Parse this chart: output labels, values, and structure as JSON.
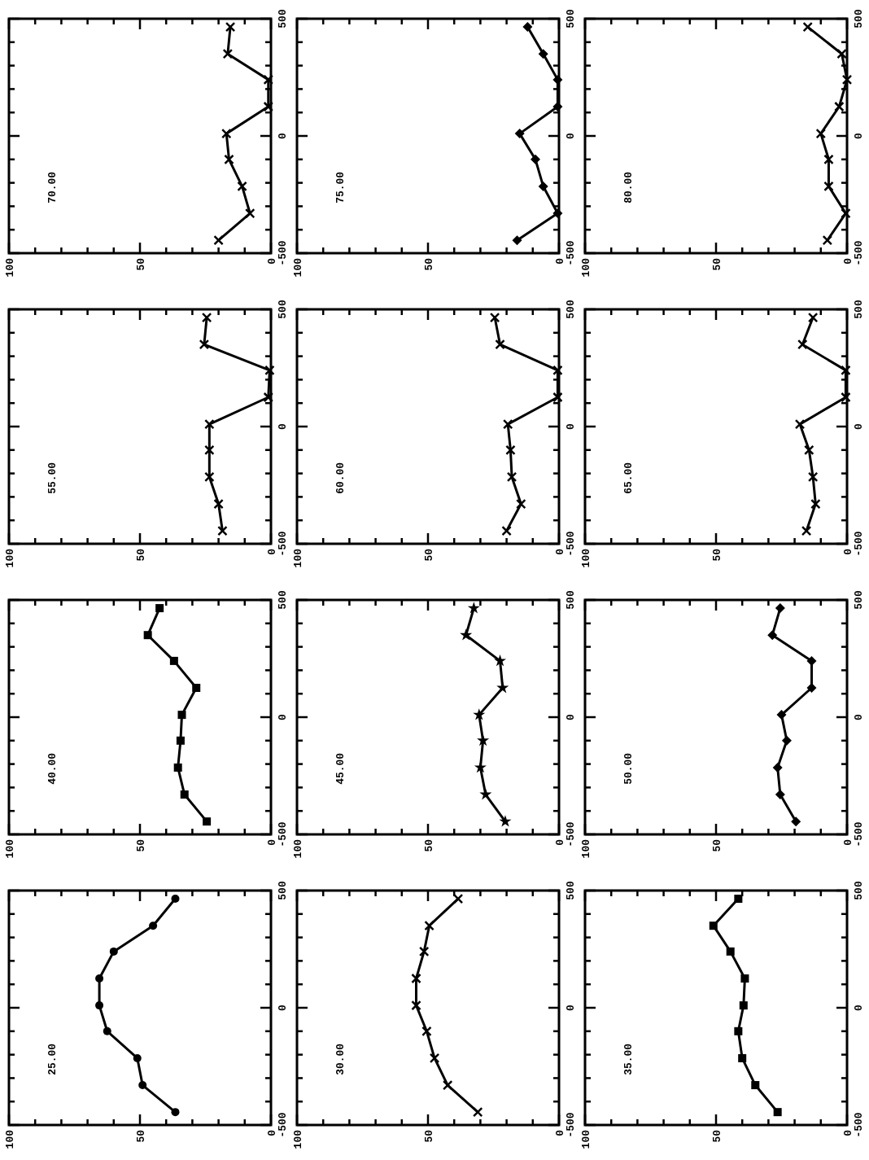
{
  "chart_data": [
    {
      "type": "line",
      "title": "70.00",
      "x": [
        20,
        8,
        11,
        16,
        17,
        1,
        1,
        16.5,
        15.5
      ],
      "values": [
        -445,
        -330,
        -215,
        -100,
        10,
        125,
        240,
        350,
        465
      ],
      "color": "#000000",
      "marker": "cross",
      "line_style": "solid",
      "xlim": [
        100,
        0
      ],
      "ylim": [
        -500,
        500
      ],
      "yticks": [
        -500,
        {
          "value": -400,
          "label": null
        },
        {
          "value": -300,
          "label": null
        },
        {
          "value": -200,
          "label": null
        },
        {
          "value": -100,
          "label": null
        },
        0,
        {
          "value": 100,
          "label": null
        },
        {
          "value": 200,
          "label": null
        },
        {
          "value": 300,
          "label": null
        },
        {
          "value": 400,
          "label": null
        },
        500
      ],
      "xticks": [
        100,
        {
          "value": 90,
          "label": null
        },
        {
          "value": 80,
          "label": null
        },
        {
          "value": 70,
          "label": null
        },
        {
          "value": 60,
          "label": null
        },
        50,
        {
          "value": 40,
          "label": null
        },
        {
          "value": 30,
          "label": null
        },
        {
          "value": 20,
          "label": null
        },
        {
          "value": 10,
          "label": null
        },
        0
      ]
    },
    {
      "type": "line",
      "title": "75.00",
      "x": [
        16,
        0.5,
        6,
        9,
        15,
        0.5,
        0.5,
        6,
        12
      ],
      "values": [
        -445,
        -330,
        -215,
        -100,
        10,
        125,
        240,
        350,
        465
      ],
      "color": "#000000",
      "marker": "diamond",
      "line_style": "solid",
      "xlim": [
        100,
        0
      ],
      "ylim": [
        -500,
        500
      ],
      "yticks": [
        -500,
        {
          "value": -400,
          "label": null
        },
        {
          "value": -300,
          "label": null
        },
        {
          "value": -200,
          "label": null
        },
        {
          "value": -100,
          "label": null
        },
        0,
        {
          "value": 100,
          "label": null
        },
        {
          "value": 200,
          "label": null
        },
        {
          "value": 300,
          "label": null
        },
        {
          "value": 400,
          "label": null
        },
        500
      ],
      "xticks": [
        100,
        {
          "value": 90,
          "label": null
        },
        {
          "value": 80,
          "label": null
        },
        {
          "value": 70,
          "label": null
        },
        {
          "value": 60,
          "label": null
        },
        50,
        {
          "value": 40,
          "label": null
        },
        {
          "value": 30,
          "label": null
        },
        {
          "value": 20,
          "label": null
        },
        {
          "value": 10,
          "label": null
        },
        0
      ]
    },
    {
      "type": "line",
      "title": "80.00",
      "x": [
        7.5,
        0.5,
        7,
        7,
        10,
        3,
        0,
        2,
        15
      ],
      "values": [
        -445,
        -330,
        -215,
        -100,
        10,
        125,
        240,
        350,
        465
      ],
      "color": "#000000",
      "marker": "cross",
      "line_style": "solid",
      "xlim": [
        100,
        0
      ],
      "ylim": [
        -500,
        500
      ],
      "yticks": [
        -500,
        {
          "value": -400,
          "label": null
        },
        {
          "value": -300,
          "label": null
        },
        {
          "value": -200,
          "label": null
        },
        {
          "value": -100,
          "label": null
        },
        0,
        {
          "value": 100,
          "label": null
        },
        {
          "value": 200,
          "label": null
        },
        {
          "value": 300,
          "label": null
        },
        {
          "value": 400,
          "label": null
        },
        500
      ],
      "xticks": [
        100,
        {
          "value": 90,
          "label": null
        },
        {
          "value": 80,
          "label": null
        },
        {
          "value": 70,
          "label": null
        },
        {
          "value": 60,
          "label": null
        },
        50,
        {
          "value": 40,
          "label": null
        },
        {
          "value": 30,
          "label": null
        },
        {
          "value": 20,
          "label": null
        },
        {
          "value": 10,
          "label": null
        },
        0
      ]
    },
    {
      "type": "line",
      "title": "55.00",
      "x": [
        18.5,
        20,
        23.5,
        23.5,
        23.5,
        1,
        0.5,
        25.5,
        24.5
      ],
      "values": [
        -445,
        -330,
        -215,
        -100,
        10,
        125,
        240,
        350,
        465
      ],
      "color": "#000000",
      "marker": "cross",
      "line_style": "solid",
      "xlim": [
        100,
        0
      ],
      "ylim": [
        -500,
        500
      ],
      "yticks": [
        -500,
        {
          "value": -400,
          "label": null
        },
        {
          "value": -300,
          "label": null
        },
        {
          "value": -200,
          "label": null
        },
        {
          "value": -100,
          "label": null
        },
        0,
        {
          "value": 100,
          "label": null
        },
        {
          "value": 200,
          "label": null
        },
        {
          "value": 300,
          "label": null
        },
        {
          "value": 400,
          "label": null
        },
        500
      ],
      "xticks": [
        100,
        {
          "value": 90,
          "label": null
        },
        {
          "value": 80,
          "label": null
        },
        {
          "value": 70,
          "label": null
        },
        {
          "value": 60,
          "label": null
        },
        50,
        {
          "value": 40,
          "label": null
        },
        {
          "value": 30,
          "label": null
        },
        {
          "value": 20,
          "label": null
        },
        {
          "value": 10,
          "label": null
        },
        0
      ]
    },
    {
      "type": "line",
      "title": "60.00",
      "x": [
        20,
        14.5,
        18,
        18.5,
        19.5,
        0.5,
        0.5,
        22.5,
        24.5
      ],
      "values": [
        -445,
        -330,
        -215,
        -100,
        10,
        125,
        240,
        350,
        465
      ],
      "color": "#000000",
      "marker": "cross",
      "line_style": "solid",
      "xlim": [
        100,
        0
      ],
      "ylim": [
        -500,
        500
      ],
      "yticks": [
        -500,
        {
          "value": -400,
          "label": null
        },
        {
          "value": -300,
          "label": null
        },
        {
          "value": -200,
          "label": null
        },
        {
          "value": -100,
          "label": null
        },
        0,
        {
          "value": 100,
          "label": null
        },
        {
          "value": 200,
          "label": null
        },
        {
          "value": 300,
          "label": null
        },
        {
          "value": 400,
          "label": null
        },
        500
      ],
      "xticks": [
        100,
        {
          "value": 90,
          "label": null
        },
        {
          "value": 80,
          "label": null
        },
        {
          "value": 70,
          "label": null
        },
        {
          "value": 60,
          "label": null
        },
        50,
        {
          "value": 40,
          "label": null
        },
        {
          "value": 30,
          "label": null
        },
        {
          "value": 20,
          "label": null
        },
        {
          "value": 10,
          "label": null
        },
        0
      ]
    },
    {
      "type": "line",
      "title": "65.00",
      "x": [
        15.5,
        12,
        13,
        14.5,
        18,
        0.5,
        0.5,
        17,
        13
      ],
      "values": [
        -445,
        -330,
        -215,
        -100,
        10,
        125,
        240,
        350,
        465
      ],
      "color": "#000000",
      "marker": "cross",
      "line_style": "solid",
      "xlim": [
        100,
        0
      ],
      "ylim": [
        -500,
        500
      ],
      "yticks": [
        -500,
        {
          "value": -400,
          "label": null
        },
        {
          "value": -300,
          "label": null
        },
        {
          "value": -200,
          "label": null
        },
        {
          "value": -100,
          "label": null
        },
        0,
        {
          "value": 100,
          "label": null
        },
        {
          "value": 200,
          "label": null
        },
        {
          "value": 300,
          "label": null
        },
        {
          "value": 400,
          "label": null
        },
        500
      ],
      "xticks": [
        100,
        {
          "value": 90,
          "label": null
        },
        {
          "value": 80,
          "label": null
        },
        {
          "value": 70,
          "label": null
        },
        {
          "value": 60,
          "label": null
        },
        50,
        {
          "value": 40,
          "label": null
        },
        {
          "value": 30,
          "label": null
        },
        {
          "value": 20,
          "label": null
        },
        {
          "value": 10,
          "label": null
        },
        0
      ]
    },
    {
      "type": "line",
      "title": "40.00",
      "x": [
        24.5,
        33,
        35.5,
        34.5,
        34,
        28.5,
        37,
        47,
        42.5
      ],
      "values": [
        -445,
        -330,
        -215,
        -100,
        10,
        125,
        240,
        350,
        465
      ],
      "color": "#000000",
      "marker": "square",
      "line_style": "solid",
      "xlim": [
        100,
        0
      ],
      "ylim": [
        -500,
        500
      ],
      "yticks": [
        -500,
        {
          "value": -400,
          "label": null
        },
        {
          "value": -300,
          "label": null
        },
        {
          "value": -200,
          "label": null
        },
        {
          "value": -100,
          "label": null
        },
        0,
        {
          "value": 100,
          "label": null
        },
        {
          "value": 200,
          "label": null
        },
        {
          "value": 300,
          "label": null
        },
        {
          "value": 400,
          "label": null
        },
        500
      ],
      "xticks": [
        100,
        {
          "value": 90,
          "label": null
        },
        {
          "value": 80,
          "label": null
        },
        {
          "value": 70,
          "label": null
        },
        {
          "value": 60,
          "label": null
        },
        50,
        {
          "value": 40,
          "label": null
        },
        {
          "value": 30,
          "label": null
        },
        {
          "value": 20,
          "label": null
        },
        {
          "value": 10,
          "label": null
        },
        0
      ]
    },
    {
      "type": "line",
      "title": "45.00",
      "x": [
        20.5,
        28,
        30,
        29,
        30.5,
        21.5,
        22.5,
        35.5,
        32.5
      ],
      "values": [
        -445,
        -330,
        -215,
        -100,
        10,
        125,
        240,
        350,
        465
      ],
      "color": "#000000",
      "marker": "star",
      "line_style": "solid",
      "xlim": [
        100,
        0
      ],
      "ylim": [
        -500,
        500
      ],
      "yticks": [
        -500,
        {
          "value": -400,
          "label": null
        },
        {
          "value": -300,
          "label": null
        },
        {
          "value": -200,
          "label": null
        },
        {
          "value": -100,
          "label": null
        },
        0,
        {
          "value": 100,
          "label": null
        },
        {
          "value": 200,
          "label": null
        },
        {
          "value": 300,
          "label": null
        },
        {
          "value": 400,
          "label": null
        },
        500
      ],
      "xticks": [
        100,
        {
          "value": 90,
          "label": null
        },
        {
          "value": 80,
          "label": null
        },
        {
          "value": 70,
          "label": null
        },
        {
          "value": 60,
          "label": null
        },
        50,
        {
          "value": 40,
          "label": null
        },
        {
          "value": 30,
          "label": null
        },
        {
          "value": 20,
          "label": null
        },
        {
          "value": 10,
          "label": null
        },
        0
      ]
    },
    {
      "type": "line",
      "title": "50.00",
      "x": [
        19.5,
        25.5,
        26.5,
        23,
        25,
        13.5,
        13.5,
        28.5,
        25.5
      ],
      "values": [
        -445,
        -330,
        -215,
        -100,
        10,
        125,
        240,
        350,
        465
      ],
      "color": "#000000",
      "marker": "diamond",
      "line_style": "solid",
      "xlim": [
        100,
        0
      ],
      "ylim": [
        -500,
        500
      ],
      "yticks": [
        -500,
        {
          "value": -400,
          "label": null
        },
        {
          "value": -300,
          "label": null
        },
        {
          "value": -200,
          "label": null
        },
        {
          "value": -100,
          "label": null
        },
        0,
        {
          "value": 100,
          "label": null
        },
        {
          "value": 200,
          "label": null
        },
        {
          "value": 300,
          "label": null
        },
        {
          "value": 400,
          "label": null
        },
        500
      ],
      "xticks": [
        100,
        {
          "value": 90,
          "label": null
        },
        {
          "value": 80,
          "label": null
        },
        {
          "value": 70,
          "label": null
        },
        {
          "value": 60,
          "label": null
        },
        50,
        {
          "value": 40,
          "label": null
        },
        {
          "value": 30,
          "label": null
        },
        {
          "value": 20,
          "label": null
        },
        {
          "value": 10,
          "label": null
        },
        0
      ]
    },
    {
      "type": "line",
      "title": "25.00",
      "x": [
        36.5,
        49,
        51,
        62.5,
        65.5,
        65.5,
        60,
        45,
        36.5
      ],
      "values": [
        -445,
        -330,
        -215,
        -100,
        10,
        125,
        240,
        350,
        465
      ],
      "color": "#000000",
      "marker": "circle",
      "line_style": "solid",
      "xlim": [
        100,
        0
      ],
      "ylim": [
        -500,
        500
      ],
      "yticks": [
        -500,
        {
          "value": -400,
          "label": null
        },
        {
          "value": -300,
          "label": null
        },
        {
          "value": -200,
          "label": null
        },
        {
          "value": -100,
          "label": null
        },
        0,
        {
          "value": 100,
          "label": null
        },
        {
          "value": 200,
          "label": null
        },
        {
          "value": 300,
          "label": null
        },
        {
          "value": 400,
          "label": null
        },
        500
      ],
      "xticks": [
        100,
        {
          "value": 90,
          "label": null
        },
        {
          "value": 80,
          "label": null
        },
        {
          "value": 70,
          "label": null
        },
        {
          "value": 60,
          "label": null
        },
        50,
        {
          "value": 40,
          "label": null
        },
        {
          "value": 30,
          "label": null
        },
        {
          "value": 20,
          "label": null
        },
        {
          "value": 10,
          "label": null
        },
        0
      ]
    },
    {
      "type": "line",
      "title": "30.00",
      "x": [
        31,
        42.5,
        47.5,
        50.5,
        54.5,
        54.5,
        51.5,
        49.5,
        38.5
      ],
      "values": [
        -445,
        -330,
        -215,
        -100,
        10,
        125,
        240,
        350,
        465
      ],
      "color": "#000000",
      "marker": "cross",
      "line_style": "solid",
      "xlim": [
        100,
        0
      ],
      "ylim": [
        -500,
        500
      ],
      "yticks": [
        -500,
        {
          "value": -400,
          "label": null
        },
        {
          "value": -300,
          "label": null
        },
        {
          "value": -200,
          "label": null
        },
        {
          "value": -100,
          "label": null
        },
        0,
        {
          "value": 100,
          "label": null
        },
        {
          "value": 200,
          "label": null
        },
        {
          "value": 300,
          "label": null
        },
        {
          "value": 400,
          "label": null
        },
        500
      ],
      "xticks": [
        100,
        {
          "value": 90,
          "label": null
        },
        {
          "value": 80,
          "label": null
        },
        {
          "value": 70,
          "label": null
        },
        {
          "value": 60,
          "label": null
        },
        50,
        {
          "value": 40,
          "label": null
        },
        {
          "value": 30,
          "label": null
        },
        {
          "value": 20,
          "label": null
        },
        {
          "value": 10,
          "label": null
        },
        0
      ]
    },
    {
      "type": "line",
      "title": "35.00",
      "x": [
        26.5,
        35,
        40,
        41.5,
        39.5,
        39,
        44.5,
        51,
        41.5
      ],
      "values": [
        -445,
        -330,
        -215,
        -100,
        10,
        125,
        240,
        350,
        465
      ],
      "color": "#000000",
      "marker": "square",
      "line_style": "solid",
      "xlim": [
        100,
        0
      ],
      "ylim": [
        -500,
        500
      ],
      "yticks": [
        -500,
        {
          "value": -400,
          "label": null
        },
        {
          "value": -300,
          "label": null
        },
        {
          "value": -200,
          "label": null
        },
        {
          "value": -100,
          "label": null
        },
        0,
        {
          "value": 100,
          "label": null
        },
        {
          "value": 200,
          "label": null
        },
        {
          "value": 300,
          "label": null
        },
        {
          "value": 400,
          "label": null
        },
        500
      ],
      "xticks": [
        100,
        {
          "value": 90,
          "label": null
        },
        {
          "value": 80,
          "label": null
        },
        {
          "value": 70,
          "label": null
        },
        {
          "value": 60,
          "label": null
        },
        50,
        {
          "value": 40,
          "label": null
        },
        {
          "value": 30,
          "label": null
        },
        {
          "value": 20,
          "label": null
        },
        {
          "value": 10,
          "label": null
        },
        0
      ]
    }
  ]
}
